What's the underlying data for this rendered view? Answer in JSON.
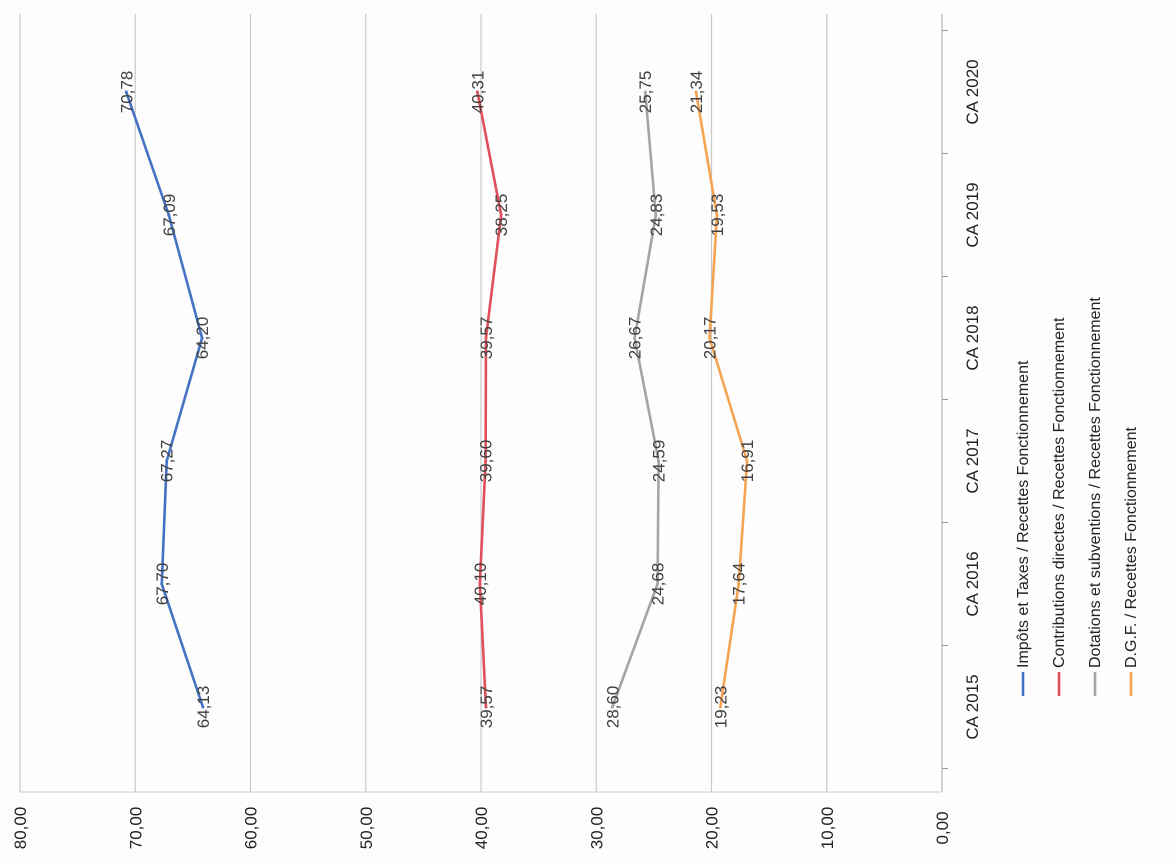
{
  "chart_data": {
    "type": "line",
    "title": "",
    "xlabel": "",
    "ylabel": "",
    "orientation": "rotated 90 degrees clockwise (value axis horizontal, categories vertical)",
    "categories": [
      "CA 2015",
      "CA 2016",
      "CA 2017",
      "CA 2018",
      "CA 2019",
      "CA 2020"
    ],
    "ylim": [
      0,
      80
    ],
    "y_ticks": [
      "0,00",
      "10,00",
      "20,00",
      "30,00",
      "40,00",
      "50,00",
      "60,00",
      "70,00",
      "80,00"
    ],
    "grid": true,
    "legend_position": "right (bottom of chart when rotated)",
    "series": [
      {
        "name": "Impôts et Taxes / Recettes Fonctionnement",
        "color": "#4472c4",
        "values": [
          64.13,
          67.7,
          67.27,
          64.2,
          67.09,
          70.78
        ],
        "labels": [
          "64,13",
          "67,70",
          "67,27",
          "64,20",
          "67,09",
          "70,78"
        ]
      },
      {
        "name": "Contributions directes / Recettes Fonctionnement",
        "color": "#e0505a",
        "values": [
          39.57,
          40.1,
          39.6,
          39.57,
          38.25,
          40.31
        ],
        "labels": [
          "39,57",
          "40,10",
          "39,60",
          "39,57",
          "38,25",
          "40,31"
        ]
      },
      {
        "name": "Dotations et subventions / Recettes Fonctionnement",
        "color": "#a5a5a5",
        "values": [
          28.6,
          24.68,
          24.59,
          26.67,
          24.83,
          25.75
        ],
        "labels": [
          "28,60",
          "24,68",
          "24,59",
          "26,67",
          "24,83",
          "25,75"
        ]
      },
      {
        "name": "D.G.F. / Recettes Fonctionnement",
        "color": "#f4a452",
        "values": [
          19.23,
          17.64,
          16.91,
          20.17,
          19.53,
          21.34
        ],
        "labels": [
          "19,23",
          "17,64",
          "16,91",
          "20,17",
          "19,53",
          "21,34"
        ]
      }
    ]
  }
}
